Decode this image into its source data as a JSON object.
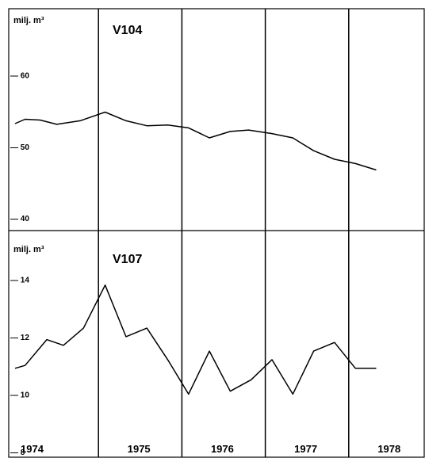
{
  "chart_data": [
    {
      "type": "line",
      "title": "V104",
      "ylabel": "milj. m³",
      "ylim": [
        38.2,
        69.3
      ],
      "yticks": [
        40,
        50,
        60
      ],
      "ytick_labels": [
        "— 40",
        "— 50",
        "— 60"
      ],
      "xlim": [
        1974.0,
        1979.0
      ],
      "year_dividers": [
        1975,
        1976,
        1977,
        1978
      ],
      "x": [
        1974.0,
        1974.12,
        1974.3,
        1974.5,
        1974.78,
        1975.08,
        1975.33,
        1975.58,
        1975.83,
        1976.08,
        1976.33,
        1976.58,
        1976.8,
        1977.08,
        1977.33,
        1977.58,
        1977.83,
        1978.08,
        1978.33
      ],
      "values": [
        53.2,
        53.8,
        53.7,
        53.1,
        53.6,
        54.8,
        53.6,
        52.9,
        53.0,
        52.6,
        51.2,
        52.1,
        52.3,
        51.8,
        51.2,
        49.4,
        48.2,
        47.6,
        46.7
      ]
    },
    {
      "type": "line",
      "title": "V107",
      "ylabel": "milj. m³",
      "ylim": [
        7.8,
        15.7
      ],
      "yticks": [
        8,
        10,
        12,
        14
      ],
      "ytick_labels": [
        "— 8",
        "— 10",
        "— 12",
        "— 14"
      ],
      "xlim": [
        1974.0,
        1979.0
      ],
      "categories": [
        "1974",
        "1975",
        "1976",
        "1977",
        "1978"
      ],
      "x": [
        1974.0,
        1974.12,
        1974.38,
        1974.58,
        1974.82,
        1975.08,
        1975.33,
        1975.58,
        1975.83,
        1976.08,
        1976.33,
        1976.58,
        1976.83,
        1977.08,
        1977.33,
        1977.58,
        1977.83,
        1978.08,
        1978.33
      ],
      "values": [
        10.9,
        11.0,
        11.9,
        11.7,
        12.3,
        13.8,
        12.0,
        12.3,
        11.2,
        10.0,
        11.5,
        10.1,
        10.5,
        11.2,
        10.0,
        11.5,
        11.8,
        10.9,
        10.9
      ]
    }
  ]
}
